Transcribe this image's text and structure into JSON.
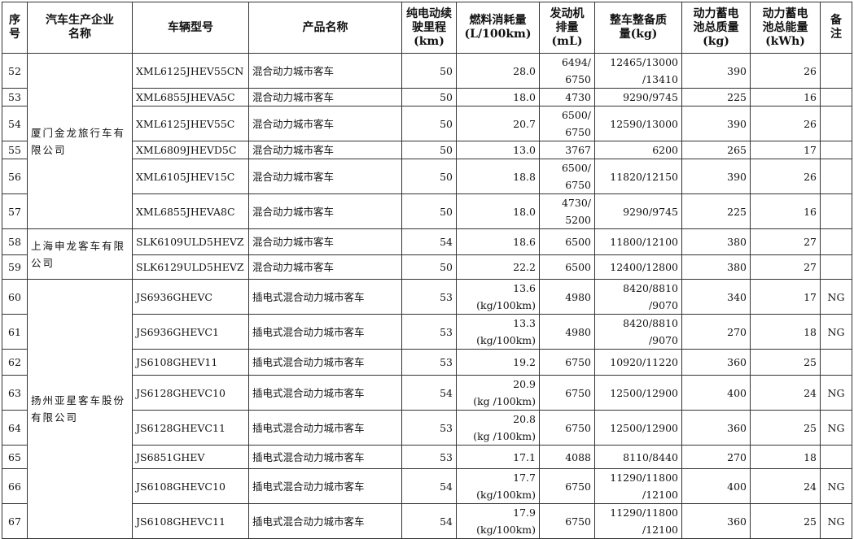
{
  "headers": [
    "序号",
    "汽车生产企业名称",
    "车辆型号",
    "产品名称",
    "纯电动续驶里程(km)",
    "燃料消耗量(L/100km)",
    "发动机排量(mL)",
    "整车整备质量(kg)",
    "动力蓄电池总质量(kg)",
    "动力蓄电池总能量(kWh)",
    "备注"
  ],
  "companies": [
    {
      "name": "厦门金龙旅行车有限公司",
      "rows": 6
    },
    {
      "name": "上海申龙客车有限公司",
      "rows": 2
    },
    {
      "name": "扬州亚星客车股份有限公司",
      "rows": 8
    }
  ],
  "rows": [
    {
      "no": "52",
      "model": "XML6125JHEV55CN",
      "product": "混合动力城市客车",
      "range": "50",
      "fuel": "28.0",
      "engine": "6494/\n6750",
      "mass": "12465/13000\n/13410",
      "bmass": "390",
      "benergy": "26",
      "note": ""
    },
    {
      "no": "53",
      "model": "XML6855JHEVA5C",
      "product": "混合动力城市客车",
      "range": "50",
      "fuel": "18.0",
      "engine": "4730",
      "mass": "9290/9745",
      "bmass": "225",
      "benergy": "16",
      "note": ""
    },
    {
      "no": "54",
      "model": "XML6125JHEV55C",
      "product": "混合动力城市客车",
      "range": "50",
      "fuel": "20.7",
      "engine": "6500/\n6750",
      "mass": "12590/13000",
      "bmass": "390",
      "benergy": "26",
      "note": ""
    },
    {
      "no": "55",
      "model": "XML6809JHEVD5C",
      "product": "混合动力城市客车",
      "range": "50",
      "fuel": "13.0",
      "engine": "3767",
      "mass": "6200",
      "bmass": "265",
      "benergy": "17",
      "note": ""
    },
    {
      "no": "56",
      "model": "XML6105JHEV15C",
      "product": "混合动力城市客车",
      "range": "50",
      "fuel": "18.8",
      "engine": "6500/\n6750",
      "mass": "11820/12150",
      "bmass": "390",
      "benergy": "26",
      "note": ""
    },
    {
      "no": "57",
      "model": "XML6855JHEVA8C",
      "product": "混合动力城市客车",
      "range": "50",
      "fuel": "18.0",
      "engine": "4730/\n5200",
      "mass": "9290/9745",
      "bmass": "225",
      "benergy": "16",
      "note": ""
    },
    {
      "no": "58",
      "model": "SLK6109ULD5HEVZ",
      "product": "混合动力城市客车",
      "range": "54",
      "fuel": "18.6",
      "engine": "6500",
      "mass": "11800/12100",
      "bmass": "380",
      "benergy": "27",
      "note": ""
    },
    {
      "no": "59",
      "model": "SLK6129ULD5HEVZ",
      "product": "混合动力城市客车",
      "range": "50",
      "fuel": "22.2",
      "engine": "6500",
      "mass": "12400/12800",
      "bmass": "380",
      "benergy": "27",
      "note": ""
    },
    {
      "no": "60",
      "model": "JS6936GHEVC",
      "product": "插电式混合动力城市客车",
      "range": "53",
      "fuel": "13.6\n(kg/100km)",
      "engine": "4980",
      "mass": "8420/8810\n/9070",
      "bmass": "340",
      "benergy": "17",
      "note": "NG"
    },
    {
      "no": "61",
      "model": "JS6936GHEVC1",
      "product": "插电式混合动力城市客车",
      "range": "53",
      "fuel": "13.3\n(kg/100km)",
      "engine": "4980",
      "mass": "8420/8810\n/9070",
      "bmass": "270",
      "benergy": "18",
      "note": "NG"
    },
    {
      "no": "62",
      "model": "JS6108GHEV11",
      "product": "插电式混合动力城市客车",
      "range": "53",
      "fuel": "19.2",
      "engine": "6750",
      "mass": "10920/11220",
      "bmass": "360",
      "benergy": "25",
      "note": ""
    },
    {
      "no": "63",
      "model": "JS6128GHEVC10",
      "product": "插电式混合动力城市客车",
      "range": "54",
      "fuel": "20.9\n(kg /100km)",
      "engine": "6750",
      "mass": "12500/12900",
      "bmass": "400",
      "benergy": "24",
      "note": "NG"
    },
    {
      "no": "64",
      "model": "JS6128GHEVC11",
      "product": "插电式混合动力城市客车",
      "range": "53",
      "fuel": "20.8\n(kg /100km)",
      "engine": "6750",
      "mass": "12500/12900",
      "bmass": "360",
      "benergy": "25",
      "note": "NG"
    },
    {
      "no": "65",
      "model": "JS6851GHEV",
      "product": "插电式混合动力城市客车",
      "range": "53",
      "fuel": "17.1",
      "engine": "4088",
      "mass": "8110/8440",
      "bmass": "270",
      "benergy": "18",
      "note": ""
    },
    {
      "no": "66",
      "model": "JS6108GHEVC10",
      "product": "插电式混合动力城市客车",
      "range": "54",
      "fuel": "17.7\n(kg/100km)",
      "engine": "6750",
      "mass": "11290/11800\n/12100",
      "bmass": "400",
      "benergy": "24",
      "note": "NG"
    },
    {
      "no": "67",
      "model": "JS6108GHEVC11",
      "product": "插电式混合动力城市客车",
      "range": "54",
      "fuel": "17.9\n(kg/100km)",
      "engine": "6750",
      "mass": "11290/11800\n/12100",
      "bmass": "360",
      "benergy": "25",
      "note": "NG"
    }
  ]
}
